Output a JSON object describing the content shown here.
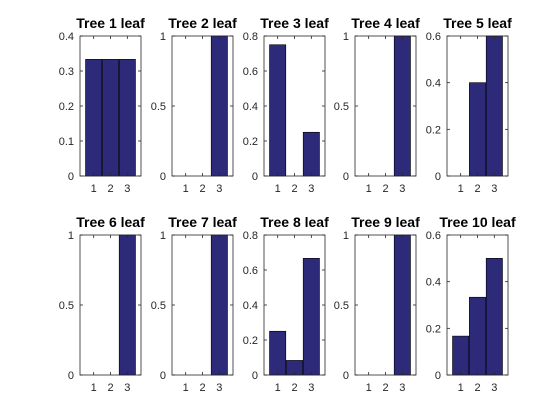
{
  "figure": {
    "bar_color": "#2e2a7a",
    "bar_edge_color": "#000000",
    "axis_color": "#262626"
  },
  "chart_data": [
    {
      "type": "bar",
      "title": "Tree 1 leaf",
      "categories": [
        "1",
        "2",
        "3"
      ],
      "values": [
        0.3333,
        0.3333,
        0.3333
      ],
      "ylim": [
        0,
        0.4
      ],
      "yticks": [
        0,
        0.1,
        0.2,
        0.3,
        0.4
      ],
      "ytick_labels": [
        "0",
        "0.1",
        "0.2",
        "0.3",
        "0.4"
      ],
      "xlabel": "",
      "ylabel": "",
      "grid": false
    },
    {
      "type": "bar",
      "title": "Tree 2 leaf",
      "categories": [
        "1",
        "2",
        "3"
      ],
      "values": [
        0,
        0,
        1
      ],
      "ylim": [
        0,
        1
      ],
      "yticks": [
        0,
        0.5,
        1
      ],
      "ytick_labels": [
        "0",
        "0.5",
        "1"
      ],
      "xlabel": "",
      "ylabel": "",
      "grid": false
    },
    {
      "type": "bar",
      "title": "Tree 3 leaf",
      "categories": [
        "1",
        "2",
        "3"
      ],
      "values": [
        0.75,
        0,
        0.25
      ],
      "ylim": [
        0,
        0.8
      ],
      "yticks": [
        0,
        0.2,
        0.4,
        0.6,
        0.8
      ],
      "ytick_labels": [
        "0",
        "0.2",
        "0.4",
        "0.6",
        "0.8"
      ],
      "xlabel": "",
      "ylabel": "",
      "grid": false
    },
    {
      "type": "bar",
      "title": "Tree 4 leaf",
      "categories": [
        "1",
        "2",
        "3"
      ],
      "values": [
        0,
        0,
        1
      ],
      "ylim": [
        0,
        1
      ],
      "yticks": [
        0,
        0.5,
        1
      ],
      "ytick_labels": [
        "0",
        "0.5",
        "1"
      ],
      "xlabel": "",
      "ylabel": "",
      "grid": false
    },
    {
      "type": "bar",
      "title": "Tree 5 leaf",
      "categories": [
        "1",
        "2",
        "3"
      ],
      "values": [
        0,
        0.4,
        0.6
      ],
      "ylim": [
        0,
        0.6
      ],
      "yticks": [
        0,
        0.2,
        0.4,
        0.6
      ],
      "ytick_labels": [
        "0",
        "0.2",
        "0.4",
        "0.6"
      ],
      "xlabel": "",
      "ylabel": "",
      "grid": false
    },
    {
      "type": "bar",
      "title": "Tree 6 leaf",
      "categories": [
        "1",
        "2",
        "3"
      ],
      "values": [
        0,
        0,
        1
      ],
      "ylim": [
        0,
        1
      ],
      "yticks": [
        0,
        0.5,
        1
      ],
      "ytick_labels": [
        "0",
        "0.5",
        "1"
      ],
      "xlabel": "",
      "ylabel": "",
      "grid": false
    },
    {
      "type": "bar",
      "title": "Tree 7 leaf",
      "categories": [
        "1",
        "2",
        "3"
      ],
      "values": [
        0,
        0,
        1
      ],
      "ylim": [
        0,
        1
      ],
      "yticks": [
        0,
        0.5,
        1
      ],
      "ytick_labels": [
        "0",
        "0.5",
        "1"
      ],
      "xlabel": "",
      "ylabel": "",
      "grid": false
    },
    {
      "type": "bar",
      "title": "Tree 8 leaf",
      "categories": [
        "1",
        "2",
        "3"
      ],
      "values": [
        0.25,
        0.0833,
        0.6667
      ],
      "ylim": [
        0,
        0.8
      ],
      "yticks": [
        0,
        0.2,
        0.4,
        0.6,
        0.8
      ],
      "ytick_labels": [
        "0",
        "0.2",
        "0.4",
        "0.6",
        "0.8"
      ],
      "xlabel": "",
      "ylabel": "",
      "grid": false
    },
    {
      "type": "bar",
      "title": "Tree 9 leaf",
      "categories": [
        "1",
        "2",
        "3"
      ],
      "values": [
        0,
        0,
        1
      ],
      "ylim": [
        0,
        1
      ],
      "yticks": [
        0,
        0.5,
        1
      ],
      "ytick_labels": [
        "0",
        "0.5",
        "1"
      ],
      "xlabel": "",
      "ylabel": "",
      "grid": false
    },
    {
      "type": "bar",
      "title": "Tree 10 leaf",
      "categories": [
        "1",
        "2",
        "3"
      ],
      "values": [
        0.1667,
        0.3333,
        0.5
      ],
      "ylim": [
        0,
        0.6
      ],
      "yticks": [
        0,
        0.2,
        0.4,
        0.6
      ],
      "ytick_labels": [
        "0",
        "0.2",
        "0.4",
        "0.6"
      ],
      "xlabel": "",
      "ylabel": "",
      "grid": false
    }
  ]
}
